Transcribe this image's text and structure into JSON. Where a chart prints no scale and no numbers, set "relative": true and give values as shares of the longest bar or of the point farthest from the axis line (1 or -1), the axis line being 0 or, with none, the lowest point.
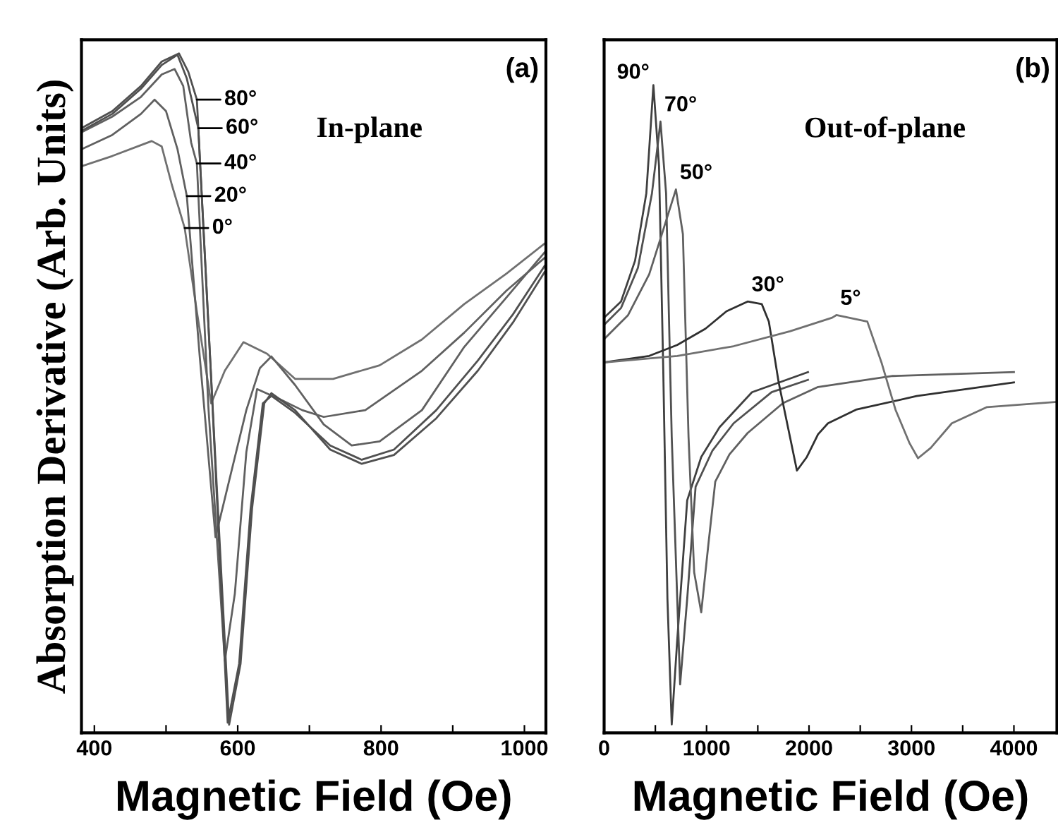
{
  "chart_data": [
    {
      "type": "line",
      "relative": true,
      "ylabel": "Absorption Derivative (Arb. Units)",
      "xlabel": "Magnetic Field (Oe)",
      "xlim": [
        382,
        1030
      ],
      "xticks": [
        400,
        {
          "value": 500,
          "label": null
        },
        600,
        {
          "value": 700,
          "label": null
        },
        800,
        {
          "value": 900,
          "label": null
        },
        1000
      ],
      "tick_labels": "x",
      "grid": false,
      "annotations": [
        "(a)",
        "In-plane",
        {
          "text": "80°",
          "x": 543,
          "y": 0.932
        },
        {
          "text": "60°",
          "x": 545,
          "y": 0.89
        },
        {
          "text": "40°",
          "x": 543,
          "y": 0.838
        },
        {
          "text": "20°",
          "x": 529,
          "y": 0.79
        },
        {
          "text": "0°",
          "x": 526,
          "y": 0.743
        }
      ],
      "series": [
        {
          "color": "#707070",
          "x": [
            382,
            425,
            465,
            480,
            494,
            508,
            526,
            543,
            563,
            582,
            608,
            641,
            680,
            733,
            798,
            857,
            916,
            975,
            1028
          ],
          "values": [
            0.834,
            0.849,
            0.865,
            0.871,
            0.863,
            0.807,
            0.743,
            0.62,
            0.485,
            0.533,
            0.575,
            0.558,
            0.521,
            0.521,
            0.541,
            0.579,
            0.631,
            0.676,
            0.72
          ]
        },
        {
          "color": "#606060",
          "x": [
            382,
            425,
            465,
            484,
            500,
            516,
            529,
            547,
            569,
            588,
            612,
            631,
            647,
            680,
            720,
            759,
            798,
            857,
            916,
            975,
            1028
          ],
          "values": [
            0.859,
            0.88,
            0.911,
            0.932,
            0.915,
            0.859,
            0.79,
            0.554,
            0.288,
            0.371,
            0.475,
            0.537,
            0.554,
            0.512,
            0.454,
            0.423,
            0.429,
            0.475,
            0.568,
            0.641,
            0.707
          ]
        },
        {
          "color": "#606060",
          "x": [
            382,
            425,
            465,
            494,
            512,
            524,
            535,
            543,
            559,
            582,
            596,
            612,
            627,
            661,
            690,
            720,
            778,
            857,
            916,
            975,
            1028
          ],
          "values": [
            0.884,
            0.907,
            0.936,
            0.969,
            0.977,
            0.952,
            0.869,
            0.838,
            0.481,
            0.106,
            0.205,
            0.413,
            0.506,
            0.49,
            0.475,
            0.465,
            0.475,
            0.533,
            0.589,
            0.651,
            0.699
          ]
        },
        {
          "color": "#505050",
          "x": [
            382,
            425,
            465,
            494,
            516,
            529,
            545,
            563,
            586,
            602,
            618,
            635,
            647,
            680,
            729,
            773,
            818,
            877,
            935,
            984,
            1028
          ],
          "values": [
            0.886,
            0.911,
            0.948,
            0.983,
            0.998,
            0.963,
            0.89,
            0.521,
            0.015,
            0.102,
            0.33,
            0.485,
            0.496,
            0.471,
            0.423,
            0.402,
            0.417,
            0.475,
            0.548,
            0.616,
            0.687
          ]
        },
        {
          "color": "#505050",
          "x": [
            382,
            425,
            465,
            494,
            518,
            531,
            543,
            563,
            588,
            604,
            620,
            637,
            647,
            680,
            729,
            773,
            818,
            877,
            935,
            984,
            1028
          ],
          "values": [
            0.89,
            0.915,
            0.952,
            0.988,
            1.0,
            0.973,
            0.932,
            0.521,
            0.012,
            0.102,
            0.33,
            0.485,
            0.5,
            0.475,
            0.417,
            0.396,
            0.409,
            0.463,
            0.533,
            0.604,
            0.678
          ]
        }
      ]
    },
    {
      "type": "line",
      "relative": true,
      "xlabel": "Magnetic Field (Oe)",
      "xlim": [
        0,
        4420
      ],
      "xticks": [
        0,
        {
          "value": 500,
          "label": null
        },
        1000,
        {
          "value": 1500,
          "label": null
        },
        2000,
        {
          "value": 2500,
          "label": null
        },
        3000,
        {
          "value": 3500,
          "label": null
        },
        4000
      ],
      "tick_labels": "x",
      "grid": false,
      "annotations": [
        "(b)",
        "Out-of-plane",
        {
          "text": "90°",
          "x": 481,
          "y": 1.0
        },
        {
          "text": "70°",
          "x": 550,
          "y": 0.944
        },
        {
          "text": "50°",
          "x": 701,
          "y": 0.839
        },
        {
          "text": "30°",
          "x": 1401,
          "y": 0.666
        },
        {
          "text": "5°",
          "x": 2267,
          "y": 0.645
        }
      ],
      "series": [
        {
          "color": "#404040",
          "x": [
            0,
            165,
            302,
            412,
            481,
            536,
            577,
            618,
            660,
            714,
            811,
            948,
            1127,
            1443,
            1990
          ],
          "values": [
            0.641,
            0.666,
            0.729,
            0.833,
            1.0,
            0.875,
            0.562,
            0.207,
            0.013,
            0.144,
            0.359,
            0.426,
            0.472,
            0.526,
            0.557
          ]
        },
        {
          "color": "#505050",
          "x": [
            0,
            165,
            330,
            467,
            550,
            605,
            660,
            742,
            811,
            893,
            1058,
            1264,
            1635,
            1990
          ],
          "values": [
            0.63,
            0.656,
            0.718,
            0.833,
            0.944,
            0.833,
            0.457,
            0.075,
            0.207,
            0.38,
            0.436,
            0.478,
            0.526,
            0.545
          ]
        },
        {
          "color": "#606060",
          "x": [
            0,
            234,
            440,
            536,
            701,
            769,
            824,
            879,
            948,
            1017,
            1085,
            1223,
            1401,
            1745,
            2088,
            2817,
            4000
          ],
          "values": [
            0.608,
            0.645,
            0.708,
            0.756,
            0.839,
            0.77,
            0.457,
            0.248,
            0.186,
            0.29,
            0.388,
            0.43,
            0.463,
            0.509,
            0.534,
            0.551,
            0.557
          ]
        },
        {
          "color": "#303030",
          "x": [
            0,
            440,
            714,
            989,
            1195,
            1401,
            1539,
            1608,
            1704,
            1814,
            1882,
            1979,
            2088,
            2185,
            2459,
            3050,
            4000
          ],
          "values": [
            0.572,
            0.582,
            0.599,
            0.624,
            0.651,
            0.666,
            0.662,
            0.635,
            0.541,
            0.457,
            0.405,
            0.426,
            0.461,
            0.478,
            0.499,
            0.52,
            0.541
          ]
        },
        {
          "color": "#707070",
          "x": [
            0,
            714,
            1264,
            1814,
            2226,
            2267,
            2569,
            2707,
            2844,
            2982,
            3064,
            3188,
            3394,
            3737,
            4420
          ],
          "values": [
            0.572,
            0.582,
            0.597,
            0.62,
            0.641,
            0.645,
            0.635,
            0.572,
            0.499,
            0.447,
            0.424,
            0.44,
            0.478,
            0.503,
            0.511
          ]
        }
      ]
    }
  ]
}
